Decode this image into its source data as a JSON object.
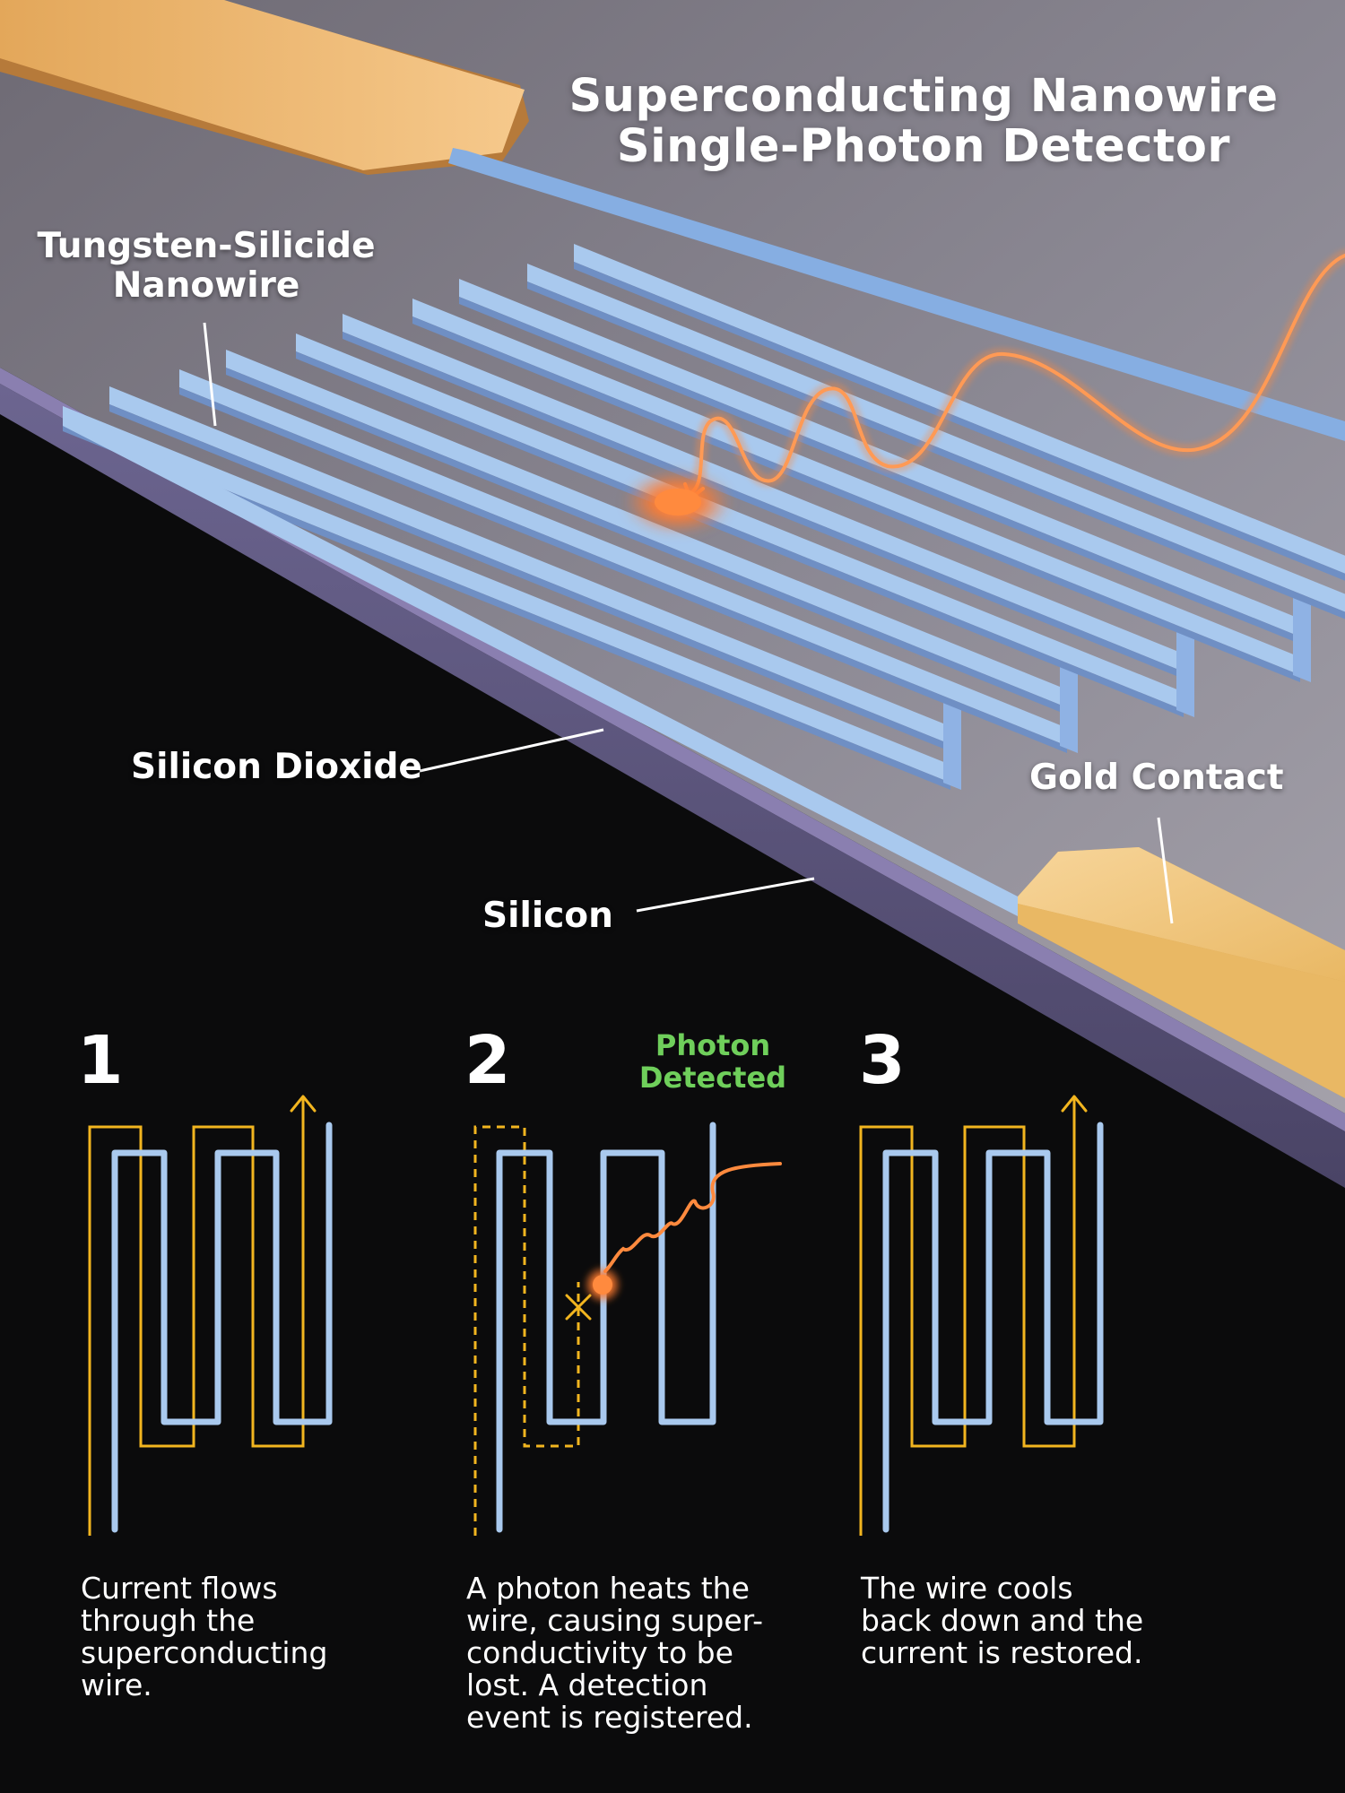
{
  "title": {
    "line1": "Superconducting Nanowire",
    "line2": "Single-Photon Detector"
  },
  "labels": {
    "nanowire_line1": "Tungsten-Silicide",
    "nanowire_line2": "Nanowire",
    "silicon_dioxide": "Silicon Dioxide",
    "silicon": "Silicon",
    "gold_contact": "Gold Contact"
  },
  "steps": [
    {
      "number": "1",
      "desc_lines": [
        "Current flows",
        "through the",
        "superconducting",
        "wire."
      ]
    },
    {
      "number": "2",
      "desc_lines": [
        "A photon heats the",
        "wire, causing super-",
        "conductivity to be",
        "lost. A detection",
        "event is registered."
      ]
    },
    {
      "number": "3",
      "desc_lines": [
        "The wire cools",
        "back down and the",
        "current is restored."
      ]
    }
  ],
  "photon_detected": {
    "line1": "Photon",
    "line2": "Detected"
  },
  "colors": {
    "nanowire": "#a9c9ee",
    "current": "#f2b51f",
    "photon": "#ff7a2e",
    "gold": "#f3c77e",
    "detected": "#6fcf5b",
    "background": "#0b0b0c"
  }
}
